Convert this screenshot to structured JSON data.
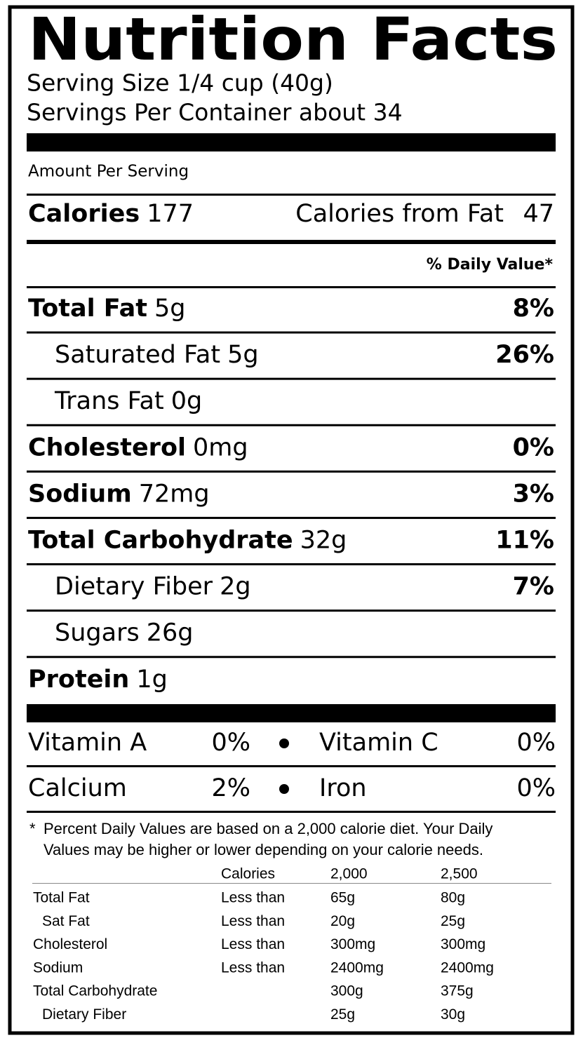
{
  "title": "Nutrition Facts",
  "serving_size": "Serving Size 1/4 cup (40g)",
  "servings_per_container": "Servings Per Container about 34",
  "amount_per_serving": "Amount Per Serving",
  "calories": {
    "label": "Calories",
    "value": 177
  },
  "calories_from_fat": {
    "label": "Calories from Fat",
    "value": 47
  },
  "daily_value_header": "% Daily Value*",
  "nutrients": [
    {
      "name": "Total Fat",
      "amount": "5g",
      "dv": "8%",
      "sub": [
        {
          "name": "Saturated Fat",
          "amount": "5g",
          "dv": "26%"
        },
        {
          "name": "Trans Fat",
          "amount": "0g"
        }
      ]
    },
    {
      "name": "Cholesterol",
      "amount": "0mg",
      "dv": "0%"
    },
    {
      "name": "Sodium",
      "amount": "72mg",
      "dv": "3%"
    },
    {
      "name": "Total Carbohydrate",
      "amount": "32g",
      "dv": "11%",
      "sub": [
        {
          "name": "Dietary Fiber",
          "amount": "2g",
          "dv": "7%"
        },
        {
          "name": "Sugars",
          "amount": "26g"
        }
      ]
    },
    {
      "name": "Protein",
      "amount": "1g"
    }
  ],
  "vitamins": [
    [
      {
        "name": "Vitamin A",
        "value": "0%"
      },
      {
        "name": "Vitamin C",
        "value": "0%"
      }
    ],
    [
      {
        "name": "Calcium",
        "value": "2%"
      },
      {
        "name": "Iron",
        "value": "0%"
      }
    ]
  ],
  "footnote": {
    "mark": "*",
    "lines": [
      "Percent Daily Values are based on a 2,000 calorie diet. Your Daily",
      "Values may be higher or lower depending on your calorie needs."
    ]
  },
  "reference_table": {
    "header": {
      "label": "Calories",
      "columns": [
        "2,000",
        "2,500"
      ]
    },
    "rows": [
      {
        "name": "Total Fat",
        "qualifier": "Less than",
        "values": [
          "65g",
          "80g"
        ]
      },
      {
        "name": "Sat Fat",
        "indent": true,
        "qualifier": "Less than",
        "values": [
          "20g",
          "25g"
        ]
      },
      {
        "name": "Cholesterol",
        "qualifier": "Less than",
        "values": [
          "300mg",
          "300mg"
        ]
      },
      {
        "name": "Sodium",
        "qualifier": "Less than",
        "values": [
          "2400mg",
          "2400mg"
        ]
      },
      {
        "name": "Total Carbohydrate",
        "values": [
          "300g",
          "375g"
        ]
      },
      {
        "name": "Dietary Fiber",
        "indent": true,
        "values": [
          "25g",
          "30g"
        ]
      }
    ]
  }
}
